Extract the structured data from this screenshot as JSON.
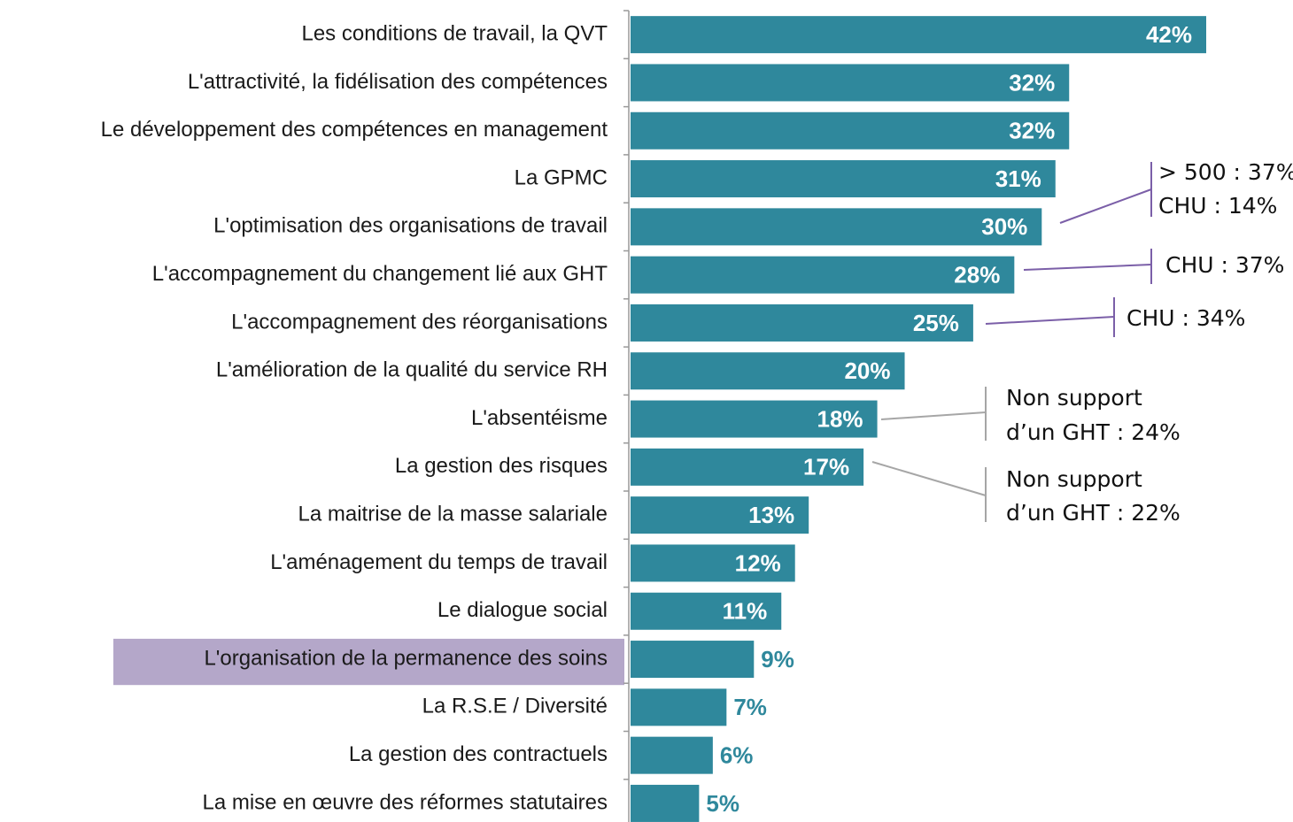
{
  "chart_data": {
    "type": "bar",
    "orientation": "horizontal",
    "color": "#2f889c",
    "categories": [
      "Les conditions de travail, la QVT",
      "L'attractivité, la fidélisation des compétences",
      "Le développement des compétences en management",
      "La GPMC",
      "L'optimisation des organisations de travail",
      "L'accompagnement du changement lié aux GHT",
      "L'accompagnement des réorganisations",
      "L'amélioration de la qualité du service RH",
      "L'absentéisme",
      "La gestion des risques",
      "La maitrise de la masse salariale",
      "L'aménagement du temps de travail",
      "Le dialogue social",
      "L'organisation de la permanence des soins",
      "La R.S.E / Diversité",
      "La gestion des contractuels",
      "La mise en œuvre des réformes statutaires"
    ],
    "values": [
      42,
      32,
      32,
      31,
      30,
      28,
      25,
      20,
      18,
      17,
      13,
      12,
      11,
      9,
      7,
      6,
      5
    ],
    "value_labels": [
      "42%",
      "32%",
      "32%",
      "31%",
      "30%",
      "28%",
      "25%",
      "20%",
      "18%",
      "17%",
      "13%",
      "12%",
      "11%",
      "9%",
      "7%",
      "6%",
      "5%"
    ],
    "annotations": [
      {
        "lines": [
          "> 500 : 37%",
          "CHU : 14%"
        ],
        "color": "#7b5fa8"
      },
      {
        "lines": [
          "CHU : 37%"
        ],
        "color": "#7b5fa8"
      },
      {
        "lines": [
          "CHU : 34%"
        ],
        "color": "#7b5fa8"
      },
      {
        "lines": [
          "Non support",
          "d’un GHT : 24%"
        ],
        "color": "#a6a6a6"
      },
      {
        "lines": [
          "Non support",
          "d’un GHT : 22%"
        ],
        "color": "#a6a6a6"
      }
    ]
  }
}
